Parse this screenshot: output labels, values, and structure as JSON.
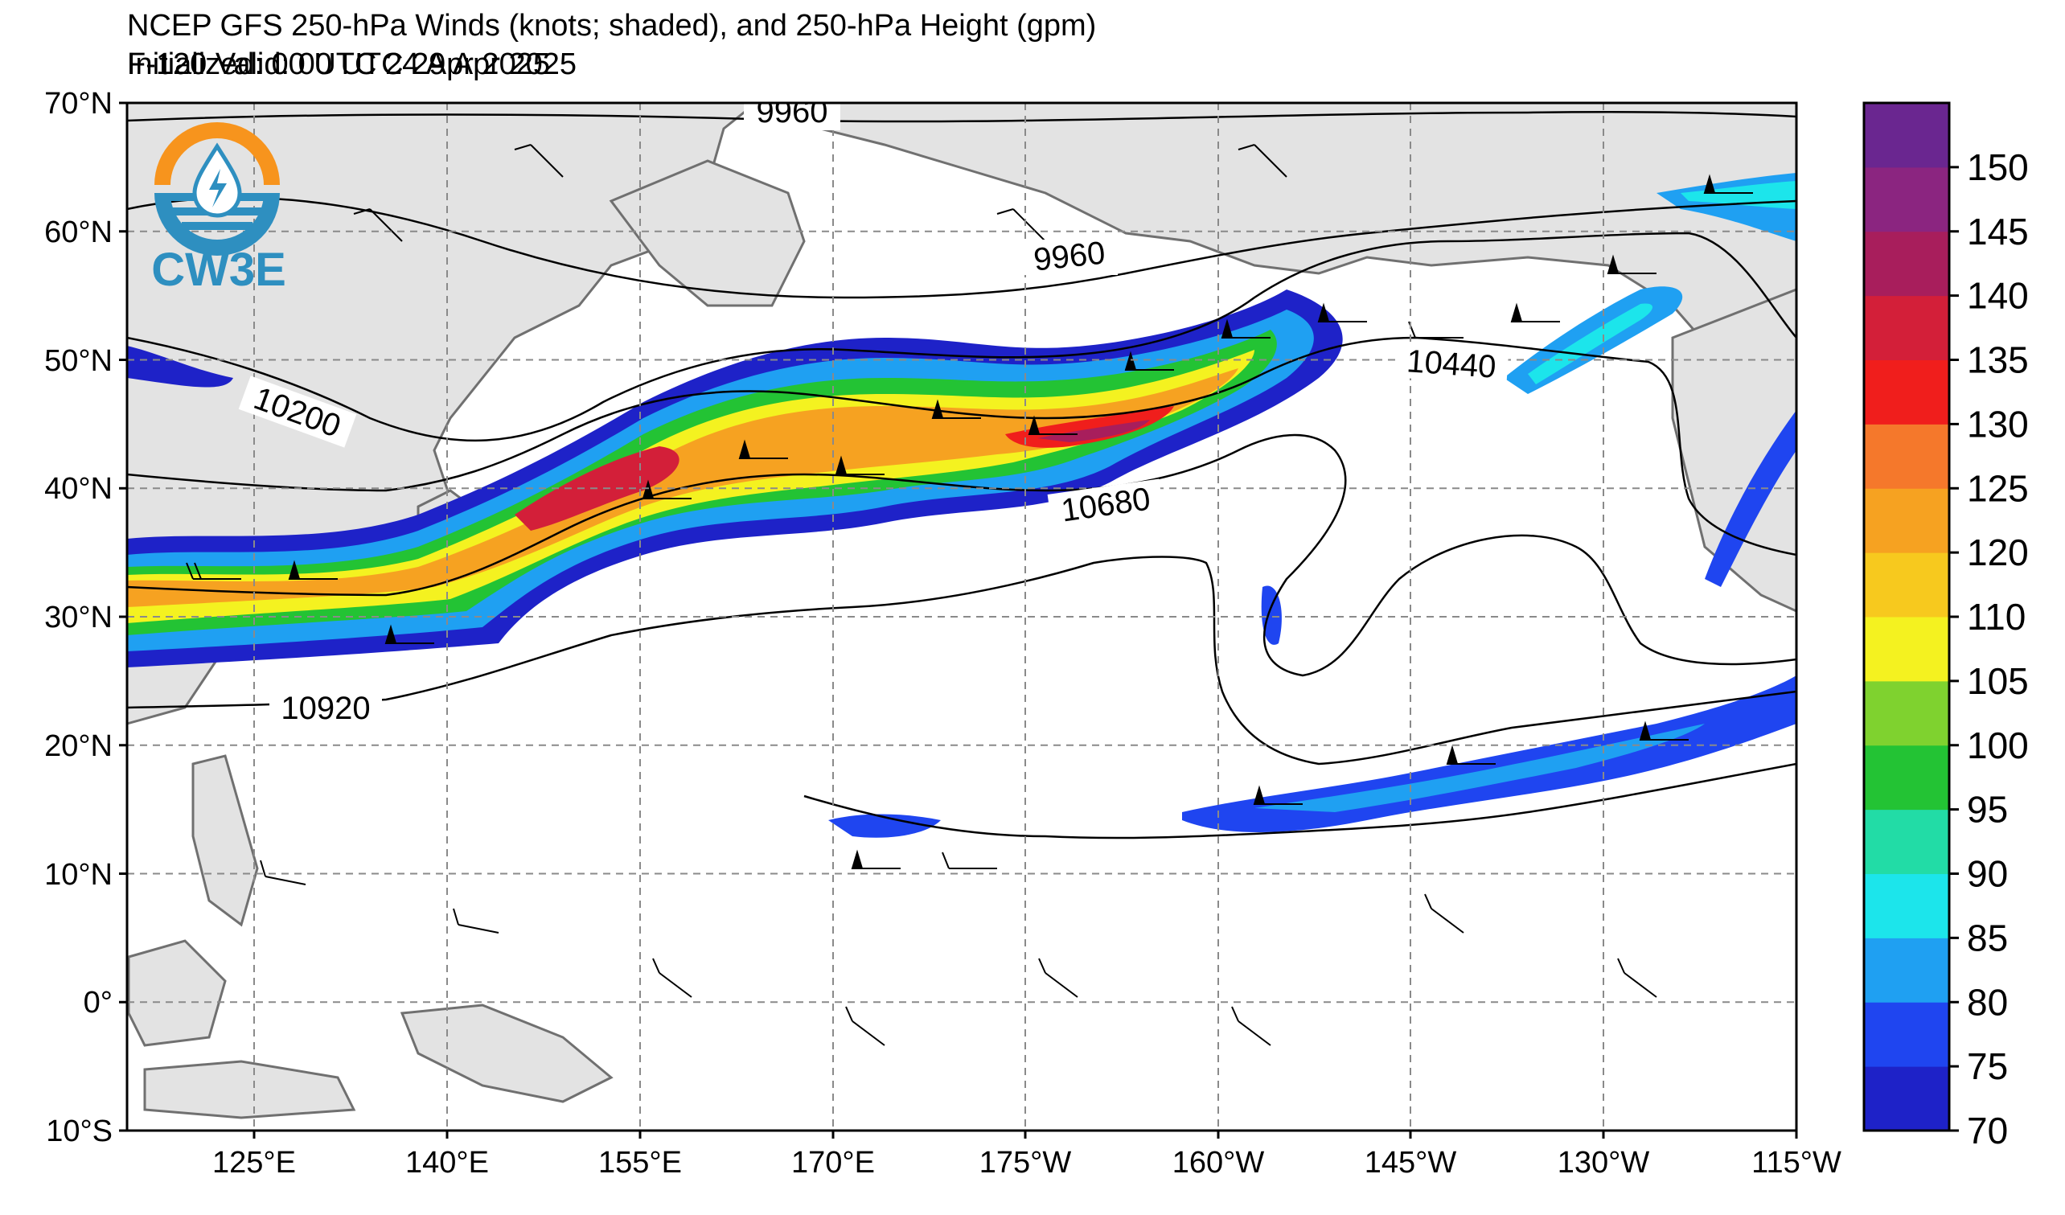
{
  "header": {
    "title_line1": "NCEP GFS 250-hPa Winds (knots; shaded), and 250-hPa Height (gpm)",
    "title_line2_left": "Initialized: 00 UTC 24 Apr 2025",
    "title_line2_right": "F-120  Valid: 00 UTC 29 Apr 2025"
  },
  "logo": {
    "text": "CW3E",
    "icon": "cw3e-logo-icon",
    "colors": {
      "orange": "#F7941D",
      "blue": "#2E8FC0"
    }
  },
  "map": {
    "lat_labels": [
      "70°N",
      "60°N",
      "50°N",
      "40°N",
      "30°N",
      "20°N",
      "10°N",
      "0°",
      "10°S"
    ],
    "lon_labels": [
      "125°E",
      "140°E",
      "155°E",
      "170°E",
      "175°W",
      "160°W",
      "145°W",
      "130°W",
      "115°W"
    ],
    "contour_labels": [
      "9960",
      "9960",
      "10200",
      "10440",
      "10680",
      "10920"
    ],
    "land_color": "#e3e3e3",
    "coast_color": "#707070"
  },
  "colorbar": {
    "tick_labels": [
      "70",
      "75",
      "80",
      "85",
      "90",
      "95",
      "100",
      "105",
      "110",
      "120",
      "125",
      "130",
      "135",
      "140",
      "145",
      "150"
    ],
    "colors": [
      "#1E22C8",
      "#1F45F0",
      "#1FA0F2",
      "#1CE5EB",
      "#22DCA6",
      "#23C334",
      "#7FD22F",
      "#F4F220",
      "#F7C91E",
      "#F6A221",
      "#F5782B",
      "#F01E1C",
      "#D31F39",
      "#A81E5C",
      "#8B2580",
      "#6A2690"
    ]
  }
}
